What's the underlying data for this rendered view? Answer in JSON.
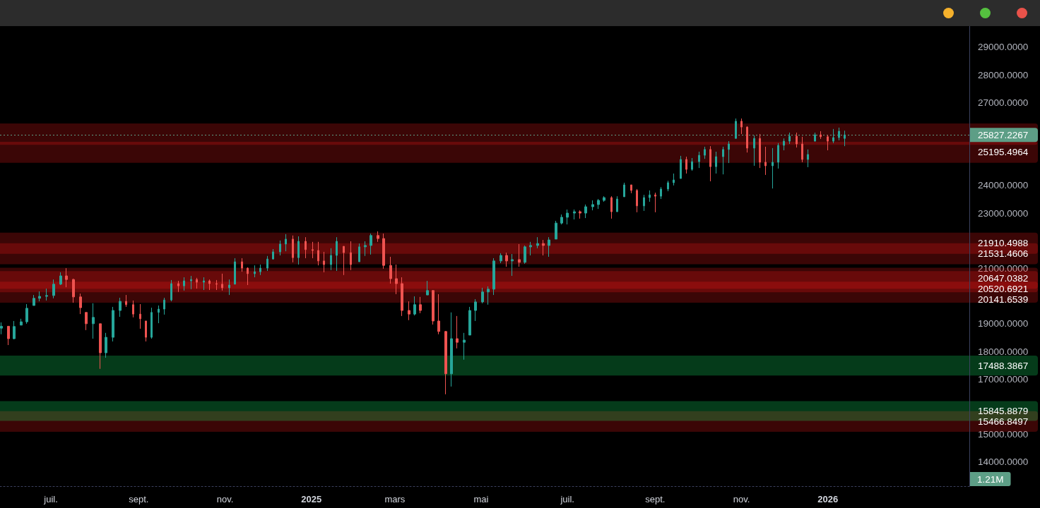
{
  "chart_data": {
    "type": "candlestick",
    "x": [
      "2024-05-27",
      "2024-06-01",
      "2024-06-05",
      "2024-06-10",
      "2024-06-14",
      "2024-06-19",
      "2024-06-23",
      "2024-06-28",
      "2024-07-03",
      "2024-07-08",
      "2024-07-12",
      "2024-07-17",
      "2024-07-22",
      "2024-07-26",
      "2024-07-31",
      "2024-08-05",
      "2024-08-09",
      "2024-08-14",
      "2024-08-19",
      "2024-08-23",
      "2024-08-28",
      "2024-09-02",
      "2024-09-06",
      "2024-09-10",
      "2024-09-15",
      "2024-09-19",
      "2024-09-24",
      "2024-09-29",
      "2024-10-03",
      "2024-10-08",
      "2024-10-12",
      "2024-10-17",
      "2024-10-21",
      "2024-10-26",
      "2024-10-30",
      "2024-11-04",
      "2024-11-08",
      "2024-11-13",
      "2024-11-17",
      "2024-11-22",
      "2024-11-26",
      "2024-12-01",
      "2024-12-05",
      "2024-12-10",
      "2024-12-14",
      "2024-12-19",
      "2024-12-23",
      "2024-12-28",
      "2025-01-02",
      "2025-01-06",
      "2025-01-10",
      "2025-01-15",
      "2025-01-19",
      "2025-01-24",
      "2025-01-29",
      "2025-02-04",
      "2025-02-08",
      "2025-02-12",
      "2025-02-17",
      "2025-02-21",
      "2025-02-26",
      "2025-03-02",
      "2025-03-06",
      "2025-03-11",
      "2025-03-15",
      "2025-03-19",
      "2025-03-24",
      "2025-03-28",
      "2025-04-01",
      "2025-04-06",
      "2025-04-10",
      "2025-04-14",
      "2025-04-19",
      "2025-04-23",
      "2025-04-27",
      "2025-05-02",
      "2025-05-06",
      "2025-05-10",
      "2025-05-15",
      "2025-05-19",
      "2025-05-23",
      "2025-05-28",
      "2025-06-01",
      "2025-06-05",
      "2025-06-10",
      "2025-06-14",
      "2025-06-18",
      "2025-06-23",
      "2025-06-27",
      "2025-07-01",
      "2025-07-06",
      "2025-07-10",
      "2025-07-14",
      "2025-07-19",
      "2025-07-23",
      "2025-07-27",
      "2025-08-01",
      "2025-08-05",
      "2025-08-10",
      "2025-08-15",
      "2025-08-19",
      "2025-08-24",
      "2025-08-28",
      "2025-09-01",
      "2025-09-05",
      "2025-09-10",
      "2025-09-14",
      "2025-09-19",
      "2025-09-23",
      "2025-09-27",
      "2025-10-02",
      "2025-10-06",
      "2025-10-10",
      "2025-10-14",
      "2025-10-19",
      "2025-10-23",
      "2025-10-28",
      "2025-11-01",
      "2025-11-05",
      "2025-11-10",
      "2025-11-14",
      "2025-11-18",
      "2025-11-23",
      "2025-11-27",
      "2025-12-01",
      "2025-12-05",
      "2025-12-10",
      "2025-12-14",
      "2025-12-18",
      "2025-12-23",
      "2025-12-27",
      "2026-01-01",
      "2026-01-05",
      "2026-01-09",
      "2026-01-13"
    ],
    "ohlc": [
      [
        18840,
        19050,
        18620,
        18910
      ],
      [
        18910,
        18920,
        18230,
        18460
      ],
      [
        18460,
        19100,
        18440,
        18900
      ],
      [
        18950,
        19180,
        18950,
        19070
      ],
      [
        19070,
        19710,
        19000,
        19560
      ],
      [
        19660,
        20040,
        19660,
        19920
      ],
      [
        19920,
        20170,
        19810,
        19990
      ],
      [
        19990,
        20270,
        19840,
        20020
      ],
      [
        20020,
        20600,
        19920,
        20430
      ],
      [
        20430,
        20860,
        20400,
        20730
      ],
      [
        20730,
        21010,
        20320,
        20600
      ],
      [
        20600,
        20630,
        19760,
        19970
      ],
      [
        19970,
        20090,
        19350,
        19580
      ],
      [
        19410,
        19410,
        18770,
        19000
      ],
      [
        19000,
        19740,
        18460,
        19230
      ],
      [
        19000,
        19000,
        17370,
        17950
      ],
      [
        17950,
        18670,
        17770,
        18510
      ],
      [
        18510,
        19610,
        18360,
        19480
      ],
      [
        19480,
        19940,
        19250,
        19810
      ],
      [
        19810,
        20040,
        19610,
        19690
      ],
      [
        19690,
        19840,
        19230,
        19350
      ],
      [
        19350,
        19710,
        18820,
        19180
      ],
      [
        19100,
        19100,
        18360,
        18510
      ],
      [
        18510,
        19580,
        18460,
        19410
      ],
      [
        19410,
        19660,
        19020,
        19530
      ],
      [
        19530,
        19940,
        19330,
        19860
      ],
      [
        19860,
        20580,
        19810,
        20450
      ],
      [
        20450,
        20550,
        20150,
        20370
      ],
      [
        20370,
        20680,
        20200,
        20550
      ],
      [
        20550,
        20730,
        20250,
        20600
      ],
      [
        20600,
        20660,
        20270,
        20500
      ],
      [
        20500,
        20680,
        20220,
        20550
      ],
      [
        20550,
        20600,
        20220,
        20450
      ],
      [
        20450,
        20580,
        20220,
        20430
      ],
      [
        20430,
        20810,
        20200,
        20300
      ],
      [
        20300,
        20600,
        20040,
        20400
      ],
      [
        20430,
        21370,
        20430,
        21240
      ],
      [
        21240,
        21370,
        20880,
        21010
      ],
      [
        21010,
        21040,
        20400,
        20810
      ],
      [
        20810,
        21110,
        20680,
        20880
      ],
      [
        20880,
        21140,
        20760,
        21010
      ],
      [
        21010,
        21450,
        20910,
        21340
      ],
      [
        21340,
        21700,
        21320,
        21600
      ],
      [
        21600,
        22010,
        21470,
        21880
      ],
      [
        21880,
        22240,
        21620,
        22060
      ],
      [
        22060,
        22190,
        21220,
        21390
      ],
      [
        21390,
        22160,
        21140,
        21980
      ],
      [
        21980,
        22130,
        21370,
        21680
      ],
      [
        21680,
        21960,
        21370,
        21650
      ],
      [
        21650,
        21960,
        21110,
        21270
      ],
      [
        21270,
        21600,
        20860,
        21140
      ],
      [
        21140,
        21730,
        20940,
        21470
      ],
      [
        21470,
        22130,
        20910,
        21980
      ],
      [
        21800,
        21800,
        20760,
        21570
      ],
      [
        21570,
        21980,
        20940,
        21140
      ],
      [
        21240,
        21900,
        21240,
        21780
      ],
      [
        21780,
        21980,
        21450,
        21830
      ],
      [
        21830,
        22260,
        21500,
        22190
      ],
      [
        22190,
        22340,
        21960,
        22080
      ],
      [
        22080,
        22260,
        20990,
        21110
      ],
      [
        21110,
        21420,
        20450,
        20630
      ],
      [
        20630,
        21140,
        20070,
        20450
      ],
      [
        20450,
        20680,
        19280,
        19480
      ],
      [
        19480,
        19810,
        19130,
        19350
      ],
      [
        19350,
        19990,
        19300,
        19690
      ],
      [
        19690,
        19970,
        19380,
        19480
      ],
      [
        20040,
        20550,
        20040,
        20200
      ],
      [
        20200,
        20220,
        18970,
        19100
      ],
      [
        19100,
        20070,
        18620,
        18720
      ],
      [
        18720,
        18740,
        16450,
        17190
      ],
      [
        17190,
        19410,
        16730,
        18460
      ],
      [
        18460,
        19280,
        18110,
        18330
      ],
      [
        18330,
        18670,
        17700,
        18410
      ],
      [
        18590,
        19610,
        18590,
        19480
      ],
      [
        19480,
        19890,
        19100,
        19790
      ],
      [
        19790,
        20300,
        19740,
        20150
      ],
      [
        20150,
        20350,
        19690,
        20250
      ],
      [
        20250,
        21370,
        20040,
        21270
      ],
      [
        21270,
        21550,
        21190,
        21470
      ],
      [
        21470,
        21570,
        21060,
        21270
      ],
      [
        21270,
        21520,
        20730,
        21320
      ],
      [
        21320,
        21880,
        21060,
        21220
      ],
      [
        21220,
        21830,
        21170,
        21780
      ],
      [
        21780,
        21960,
        21470,
        21830
      ],
      [
        21830,
        22130,
        21730,
        21900
      ],
      [
        21900,
        22030,
        21470,
        21830
      ],
      [
        21830,
        22130,
        21420,
        22030
      ],
      [
        22060,
        22720,
        22060,
        22640
      ],
      [
        22640,
        22950,
        22590,
        22850
      ],
      [
        22850,
        23130,
        22590,
        23000
      ],
      [
        23000,
        23130,
        22770,
        23050
      ],
      [
        23050,
        23100,
        22800,
        23000
      ],
      [
        23000,
        23310,
        22820,
        23230
      ],
      [
        23230,
        23460,
        23100,
        23310
      ],
      [
        23310,
        23510,
        23150,
        23460
      ],
      [
        23460,
        23610,
        23410,
        23560
      ],
      [
        23560,
        23610,
        22800,
        23050
      ],
      [
        23050,
        23610,
        23050,
        23510
      ],
      [
        23590,
        24100,
        23590,
        24020
      ],
      [
        24020,
        24020,
        23720,
        23820
      ],
      [
        23820,
        23870,
        23030,
        23260
      ],
      [
        23260,
        23660,
        23080,
        23560
      ],
      [
        23560,
        23820,
        23410,
        23660
      ],
      [
        23660,
        23740,
        23030,
        23610
      ],
      [
        23610,
        23940,
        23510,
        23870
      ],
      [
        23870,
        24170,
        23790,
        24100
      ],
      [
        24100,
        24430,
        24000,
        24200
      ],
      [
        24250,
        25070,
        24250,
        24940
      ],
      [
        24940,
        25040,
        24430,
        24580
      ],
      [
        24580,
        24990,
        24530,
        24860
      ],
      [
        24860,
        25220,
        24630,
        25090
      ],
      [
        25090,
        25400,
        24960,
        25300
      ],
      [
        25300,
        25420,
        24150,
        24680
      ],
      [
        24680,
        25220,
        24430,
        25040
      ],
      [
        25040,
        25400,
        24400,
        25300
      ],
      [
        25300,
        25600,
        24810,
        25500
      ],
      [
        25700,
        26420,
        25700,
        26320
      ],
      [
        26320,
        26420,
        25860,
        26110
      ],
      [
        26110,
        26140,
        25190,
        25350
      ],
      [
        25350,
        25810,
        24710,
        25700
      ],
      [
        25700,
        25860,
        24630,
        24840
      ],
      [
        24840,
        25400,
        24380,
        24710
      ],
      [
        24710,
        25350,
        23890,
        24840
      ],
      [
        24840,
        25530,
        24610,
        25450
      ],
      [
        25450,
        25700,
        25270,
        25600
      ],
      [
        25600,
        25910,
        25500,
        25780
      ],
      [
        25780,
        25910,
        25370,
        25500
      ],
      [
        25500,
        25760,
        24840,
        24940
      ],
      [
        24940,
        25300,
        24660,
        25120
      ],
      [
        25600,
        25910,
        25600,
        25830
      ],
      [
        25830,
        25960,
        25680,
        25760
      ],
      [
        25760,
        25830,
        25270,
        25600
      ],
      [
        25600,
        26040,
        25530,
        25730
      ],
      [
        25730,
        26090,
        25630,
        25960
      ],
      [
        25700,
        25980,
        25420,
        25827.2267
      ]
    ],
    "colors": [
      "#26a69a",
      "#ef5350",
      "#26a69a",
      "#26a69a",
      "#26a69a",
      "#26a69a",
      "#26a69a",
      "#26a69a",
      "#26a69a",
      "#26a69a",
      "#ef5350",
      "#ef5350",
      "#ef5350",
      "#ef5350",
      "#26a69a",
      "#ef5350",
      "#26a69a",
      "#26a69a",
      "#26a69a",
      "#ef5350",
      "#ef5350",
      "#ef5350",
      "#ef5350",
      "#26a69a",
      "#26a69a",
      "#26a69a",
      "#26a69a",
      "#ef5350",
      "#26a69a",
      "#26a69a",
      "#ef5350",
      "#26a69a",
      "#ef5350",
      "#ef5350",
      "#ef5350",
      "#26a69a",
      "#26a69a",
      "#ef5350",
      "#ef5350",
      "#26a69a",
      "#26a69a",
      "#26a69a",
      "#26a69a",
      "#26a69a",
      "#26a69a",
      "#ef5350",
      "#26a69a",
      "#ef5350",
      "#ef5350",
      "#ef5350",
      "#ef5350",
      "#26a69a",
      "#26a69a",
      "#ef5350",
      "#ef5350",
      "#26a69a",
      "#26a69a",
      "#26a69a",
      "#ef5350",
      "#ef5350",
      "#ef5350",
      "#ef5350",
      "#ef5350",
      "#ef5350",
      "#26a69a",
      "#ef5350",
      "#26a69a",
      "#ef5350",
      "#ef5350",
      "#ef5350",
      "#26a69a",
      "#ef5350",
      "#26a69a",
      "#26a69a",
      "#26a69a",
      "#26a69a",
      "#26a69a",
      "#26a69a",
      "#26a69a",
      "#ef5350",
      "#26a69a",
      "#ef5350",
      "#26a69a",
      "#26a69a",
      "#26a69a",
      "#ef5350",
      "#26a69a",
      "#26a69a",
      "#26a69a",
      "#26a69a",
      "#26a69a",
      "#ef5350",
      "#26a69a",
      "#26a69a",
      "#26a69a",
      "#26a69a",
      "#ef5350",
      "#26a69a",
      "#26a69a",
      "#ef5350",
      "#ef5350",
      "#26a69a",
      "#26a69a",
      "#ef5350",
      "#26a69a",
      "#26a69a",
      "#26a69a",
      "#26a69a",
      "#ef5350",
      "#26a69a",
      "#26a69a",
      "#26a69a",
      "#ef5350",
      "#26a69a",
      "#26a69a",
      "#26a69a",
      "#26a69a",
      "#ef5350",
      "#ef5350",
      "#26a69a",
      "#ef5350",
      "#ef5350",
      "#26a69a",
      "#26a69a",
      "#26a69a",
      "#26a69a",
      "#ef5350",
      "#ef5350",
      "#26a69a",
      "#26a69a",
      "#ef5350",
      "#ef5350",
      "#26a69a",
      "#26a69a",
      "#26a69a"
    ],
    "xlim": [
      "2024-05-26",
      "2026-04-11"
    ],
    "ylim": [
      13130,
      29760
    ],
    "xticks": [
      {
        "value": "2024-07-01",
        "label": "juil."
      },
      {
        "value": "2024-09-01",
        "label": "sept."
      },
      {
        "value": "2024-11-01",
        "label": "nov."
      },
      {
        "value": "2025-01-01",
        "label": "2025"
      },
      {
        "value": "2025-03-01",
        "label": "mars"
      },
      {
        "value": "2025-05-01",
        "label": "mai"
      },
      {
        "value": "2025-07-01",
        "label": "juil."
      },
      {
        "value": "2025-09-01",
        "label": "sept."
      },
      {
        "value": "2025-11-01",
        "label": "nov."
      },
      {
        "value": "2026-01-01",
        "label": "2026"
      }
    ],
    "yticks": [
      {
        "value": 14000,
        "label": "14000.0000"
      },
      {
        "value": 15000,
        "label": "15000.0000"
      },
      {
        "value": 17000,
        "label": "17000.0000"
      },
      {
        "value": 18000,
        "label": "18000.0000"
      },
      {
        "value": 19000,
        "label": "19000.0000"
      },
      {
        "value": 21000,
        "label": "21000.0000"
      },
      {
        "value": 23000,
        "label": "23000.0000"
      },
      {
        "value": 24000,
        "label": "24000.0000"
      },
      {
        "value": 27000,
        "label": "27000.0000"
      },
      {
        "value": 28000,
        "label": "28000.0000"
      },
      {
        "value": 29000,
        "label": "29000.0000"
      }
    ],
    "bands": [
      {
        "axis": "y",
        "from": 25470,
        "to": 26240,
        "color": "#ff1a1a"
      },
      {
        "axis": "y",
        "from": 24815,
        "to": 25575,
        "label": "25195.4964",
        "color": "#ff1a1a"
      },
      {
        "axis": "y",
        "from": 21530,
        "to": 22290,
        "label": "21910.4988",
        "color": "#ff1a1a"
      },
      {
        "axis": "y",
        "from": 21151,
        "to": 21911,
        "label": "21531.4606",
        "color": "#ff1a1a"
      },
      {
        "axis": "y",
        "from": 20267,
        "to": 21027,
        "label": "20647.0382",
        "color": "#ff1a1a"
      },
      {
        "axis": "y",
        "from": 20141,
        "to": 20901,
        "label": "20520.6921",
        "color": "#ff1a1a"
      },
      {
        "axis": "y",
        "from": 19762,
        "to": 20522,
        "label": "20141.6539",
        "color": "#ff1a1a"
      },
      {
        "axis": "y",
        "from": 17128,
        "to": 17848,
        "label": "17488.3867",
        "color": "#16ff71"
      },
      {
        "axis": "y",
        "from": 15097,
        "to": 15837,
        "label": "15466.8497",
        "color": "#ff1a1a"
      },
      {
        "axis": "y",
        "from": 15488,
        "to": 16204,
        "label": "15845.8879",
        "color": "#16ff71"
      }
    ],
    "ref_lines": [
      {
        "axis": "y",
        "value": 25827.2267,
        "label": "25827.2267",
        "color": "#5d9e86",
        "line_style": "dotted"
      }
    ],
    "annotations": [
      "1.21M"
    ]
  }
}
